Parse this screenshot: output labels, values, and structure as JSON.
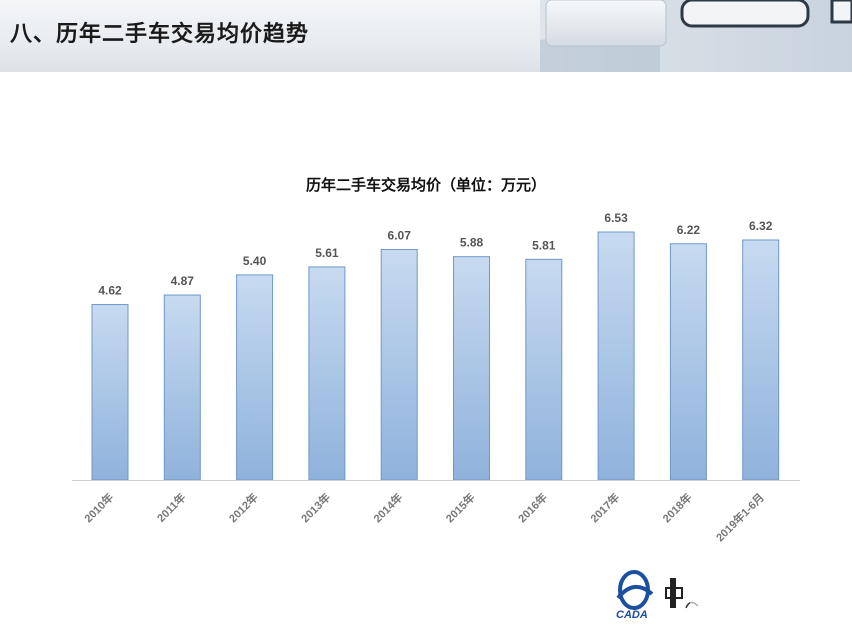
{
  "header": {
    "title": "八、历年二手车交易均价趋势"
  },
  "chart_data": {
    "type": "bar",
    "title": "历年二手车交易均价（单位：万元）",
    "categories": [
      "2010年",
      "2011年",
      "2012年",
      "2013年",
      "2014年",
      "2015年",
      "2016年",
      "2017年",
      "2018年",
      "2019年1-6月"
    ],
    "values": [
      4.62,
      4.87,
      5.4,
      5.61,
      6.07,
      5.88,
      5.81,
      6.53,
      6.22,
      6.32
    ],
    "value_labels": [
      "4.62",
      "4.87",
      "5.40",
      "5.61",
      "6.07",
      "5.88",
      "5.81",
      "6.53",
      "6.22",
      "6.32"
    ],
    "ylim": [
      0,
      6.53
    ],
    "grid": false,
    "legend": "none",
    "bar_color_top": "#c7daf0",
    "bar_color_bottom": "#8fb2dc",
    "bar_border": "#6f98c9"
  },
  "logo": {
    "text": "CADA",
    "accent": "#1b4fa0"
  }
}
